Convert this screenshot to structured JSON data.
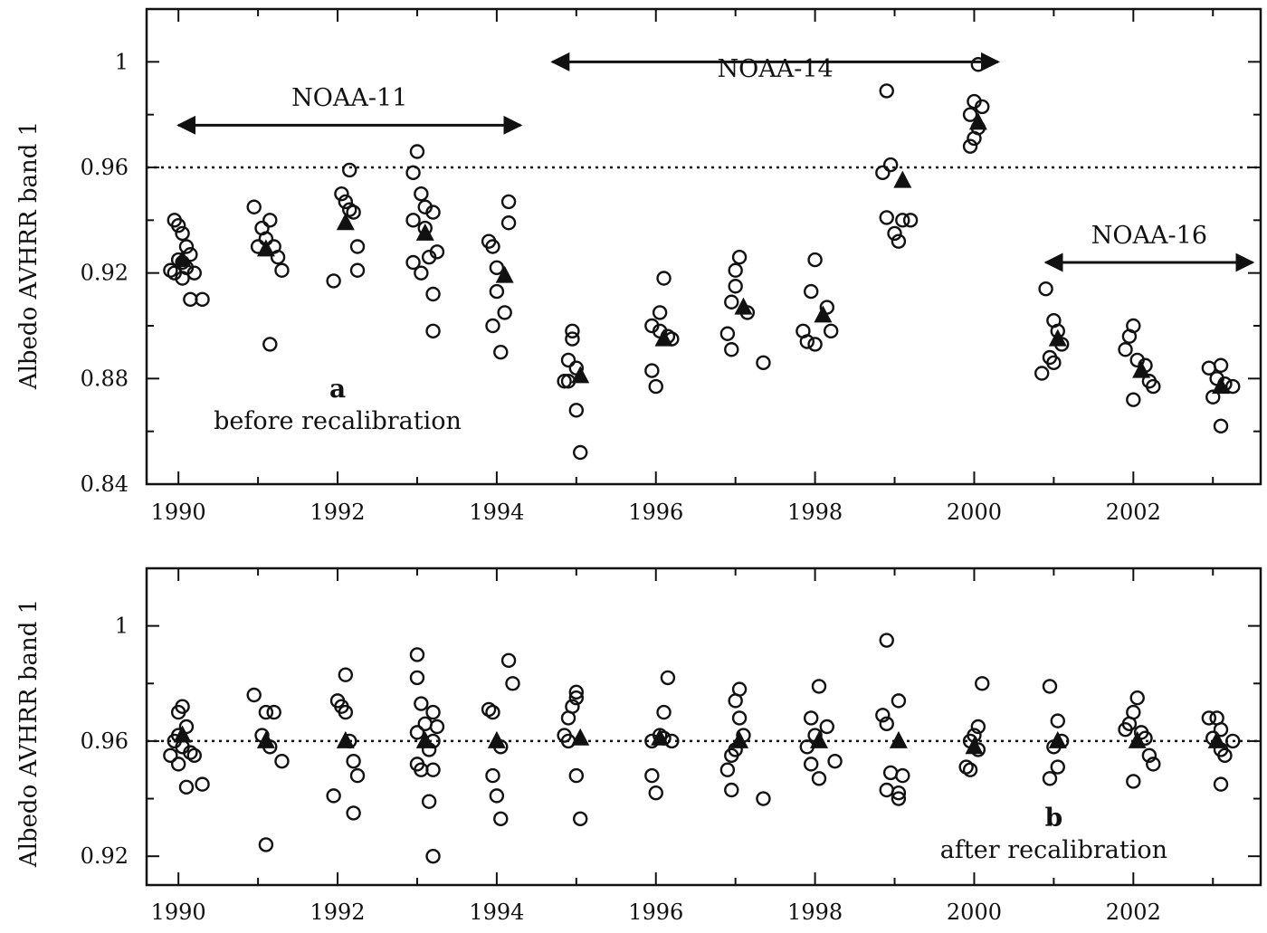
{
  "chart_data": [
    {
      "type": "scatter",
      "panel": "a",
      "ylabel": "Albedo AVHRR band 1",
      "xlabel": "",
      "xlim": [
        1989.6,
        2003.6
      ],
      "ylim": [
        0.84,
        1.02
      ],
      "x_ticks": [
        1990,
        1992,
        1994,
        1996,
        1998,
        2000,
        2002
      ],
      "x_tick_labels": [
        "1990",
        "1992",
        "1994",
        "1996",
        "1998",
        "2000",
        "2002"
      ],
      "y_ticks": [
        0.84,
        0.88,
        0.92,
        0.96,
        1.0
      ],
      "y_tick_labels": [
        "0.84",
        "0.88",
        "0.92",
        "0.96",
        "1"
      ],
      "reference_line": 0.96,
      "annotations": [
        {
          "text": "a",
          "x": 1992.0,
          "y": 0.873,
          "style": "letter"
        },
        {
          "text": "before recalibration",
          "x": 1992.0,
          "y": 0.861,
          "style": "text"
        }
      ],
      "satellites": [
        {
          "label": "NOAA-11",
          "from": 1990.0,
          "to": 1994.3,
          "y": 0.976,
          "label_y": 0.986
        },
        {
          "label": "NOAA-14",
          "from": 1994.7,
          "to": 2000.3,
          "y": 1.0,
          "label_y": 0.997
        },
        {
          "label": "NOAA-16",
          "from": 2000.9,
          "to": 2003.5,
          "y": 0.924,
          "label_y": 0.934
        }
      ],
      "groups": [
        {
          "mean_x": 1990.05,
          "mean": 0.925,
          "xs": [
            1989.95,
            1990.0,
            1990.05,
            1990.1,
            1990.15,
            1990.0,
            1990.05,
            1990.1,
            1989.9,
            1989.95,
            1990.2,
            1990.05,
            1990.15,
            1990.3
          ],
          "vals": [
            0.94,
            0.938,
            0.935,
            0.93,
            0.927,
            0.925,
            0.924,
            0.922,
            0.921,
            0.92,
            0.92,
            0.918,
            0.91,
            0.91
          ]
        },
        {
          "mean_x": 1991.1,
          "mean": 0.929,
          "xs": [
            1990.95,
            1991.15,
            1991.05,
            1991.1,
            1991.2,
            1991.0,
            1991.25,
            1991.3,
            1991.15
          ],
          "vals": [
            0.945,
            0.94,
            0.937,
            0.933,
            0.93,
            0.93,
            0.926,
            0.921,
            0.893
          ]
        },
        {
          "mean_x": 1992.1,
          "mean": 0.939,
          "xs": [
            1992.15,
            1992.05,
            1992.1,
            1992.15,
            1992.2,
            1992.25,
            1992.25,
            1991.95
          ],
          "vals": [
            0.959,
            0.95,
            0.947,
            0.944,
            0.943,
            0.93,
            0.921,
            0.917
          ]
        },
        {
          "mean_x": 1993.1,
          "mean": 0.935,
          "xs": [
            1993.0,
            1992.95,
            1993.05,
            1993.1,
            1993.2,
            1992.95,
            1993.1,
            1993.25,
            1993.15,
            1992.95,
            1993.05,
            1993.2,
            1993.2
          ],
          "vals": [
            0.966,
            0.958,
            0.95,
            0.945,
            0.943,
            0.94,
            0.937,
            0.928,
            0.926,
            0.924,
            0.92,
            0.912,
            0.898
          ]
        },
        {
          "mean_x": 1994.1,
          "mean": 0.919,
          "xs": [
            1994.15,
            1994.15,
            1993.9,
            1993.95,
            1994.0,
            1994.0,
            1994.1,
            1993.95,
            1994.05
          ],
          "vals": [
            0.947,
            0.939,
            0.932,
            0.93,
            0.922,
            0.913,
            0.905,
            0.9,
            0.89
          ]
        },
        {
          "mean_x": 1995.05,
          "mean": 0.881,
          "xs": [
            1994.95,
            1994.95,
            1994.9,
            1995.0,
            1994.85,
            1994.9,
            1995.0,
            1995.05
          ],
          "vals": [
            0.898,
            0.895,
            0.887,
            0.884,
            0.879,
            0.879,
            0.868,
            0.852
          ]
        },
        {
          "mean_x": 1996.1,
          "mean": 0.895,
          "xs": [
            1996.1,
            1996.05,
            1995.95,
            1996.05,
            1996.15,
            1996.2,
            1995.95,
            1996.0
          ],
          "vals": [
            0.918,
            0.905,
            0.9,
            0.898,
            0.896,
            0.895,
            0.883,
            0.877
          ]
        },
        {
          "mean_x": 1997.1,
          "mean": 0.907,
          "xs": [
            1997.05,
            1997.0,
            1997.0,
            1996.95,
            1997.15,
            1996.9,
            1996.95,
            1997.35
          ],
          "vals": [
            0.926,
            0.921,
            0.915,
            0.909,
            0.905,
            0.897,
            0.891,
            0.886
          ]
        },
        {
          "mean_x": 1998.1,
          "mean": 0.904,
          "xs": [
            1998.0,
            1997.95,
            1998.15,
            1997.85,
            1998.2,
            1997.9,
            1998.0
          ],
          "vals": [
            0.925,
            0.913,
            0.907,
            0.898,
            0.898,
            0.894,
            0.893
          ]
        },
        {
          "mean_x": 1999.1,
          "mean": 0.955,
          "xs": [
            1998.9,
            1998.95,
            1998.85,
            1999.1,
            1998.9,
            1999.2,
            1999.0,
            1999.05
          ],
          "vals": [
            0.989,
            0.961,
            0.958,
            0.94,
            0.941,
            0.94,
            0.935,
            0.932
          ]
        },
        {
          "mean_x": 2000.05,
          "mean": 0.977,
          "xs": [
            2000.05,
            2000.0,
            2000.1,
            1999.95,
            2000.05,
            2000.0,
            1999.95
          ],
          "vals": [
            0.999,
            0.985,
            0.983,
            0.98,
            0.975,
            0.971,
            0.968
          ]
        },
        {
          "mean_x": 2001.05,
          "mean": 0.895,
          "xs": [
            2000.9,
            2001.0,
            2001.05,
            2001.1,
            2000.95,
            2000.85,
            2001.0
          ],
          "vals": [
            0.914,
            0.902,
            0.898,
            0.893,
            0.888,
            0.882,
            0.886
          ]
        },
        {
          "mean_x": 2002.1,
          "mean": 0.883,
          "xs": [
            2002.0,
            2001.95,
            2001.9,
            2002.05,
            2002.15,
            2002.2,
            2002.25,
            2002.0
          ],
          "vals": [
            0.9,
            0.896,
            0.891,
            0.887,
            0.885,
            0.879,
            0.877,
            0.872
          ]
        },
        {
          "mean_x": 2003.1,
          "mean": 0.877,
          "xs": [
            2002.95,
            2003.1,
            2003.05,
            2003.15,
            2003.25,
            2003.0,
            2003.1
          ],
          "vals": [
            0.884,
            0.885,
            0.88,
            0.878,
            0.877,
            0.873,
            0.862
          ]
        }
      ]
    },
    {
      "type": "scatter",
      "panel": "b",
      "ylabel": "Albedo AVHRR band 1",
      "xlabel": "",
      "xlim": [
        1989.6,
        2003.6
      ],
      "ylim": [
        0.91,
        1.02
      ],
      "x_ticks": [
        1990,
        1992,
        1994,
        1996,
        1998,
        2000,
        2002
      ],
      "x_tick_labels": [
        "1990",
        "1992",
        "1994",
        "1996",
        "1998",
        "2000",
        "2002"
      ],
      "y_ticks": [
        0.92,
        0.96,
        1.0
      ],
      "y_tick_labels": [
        "0.92",
        "0.96",
        "1"
      ],
      "reference_line": 0.96,
      "annotations": [
        {
          "text": "b",
          "x": 2001.0,
          "y": 0.9305,
          "style": "letter"
        },
        {
          "text": "after recalibration",
          "x": 2001.0,
          "y": 0.9195,
          "style": "text"
        }
      ],
      "groups": [
        {
          "mean_x": 1990.05,
          "mean": 0.962,
          "xs": [
            1990.05,
            1990.0,
            1990.1,
            1990.0,
            1989.95,
            1990.05,
            1990.15,
            1989.9,
            1990.2,
            1990.0,
            1990.1,
            1990.3
          ],
          "vals": [
            0.972,
            0.97,
            0.965,
            0.962,
            0.96,
            0.958,
            0.956,
            0.955,
            0.955,
            0.952,
            0.944,
            0.945
          ]
        },
        {
          "mean_x": 1991.1,
          "mean": 0.96,
          "xs": [
            1990.95,
            1991.1,
            1991.2,
            1991.05,
            1991.15,
            1991.3,
            1991.1
          ],
          "vals": [
            0.976,
            0.97,
            0.97,
            0.962,
            0.958,
            0.953,
            0.924
          ]
        },
        {
          "mean_x": 1992.1,
          "mean": 0.96,
          "xs": [
            1992.1,
            1992.0,
            1992.05,
            1992.1,
            1992.15,
            1992.2,
            1992.25,
            1991.95,
            1992.2
          ],
          "vals": [
            0.983,
            0.974,
            0.972,
            0.97,
            0.96,
            0.953,
            0.948,
            0.941,
            0.935
          ]
        },
        {
          "mean_x": 1993.1,
          "mean": 0.96,
          "xs": [
            1993.0,
            1993.0,
            1993.05,
            1993.2,
            1993.1,
            1993.0,
            1993.2,
            1993.25,
            1993.15,
            1993.0,
            1993.05,
            1993.2,
            1993.15,
            1993.2
          ],
          "vals": [
            0.99,
            0.982,
            0.973,
            0.97,
            0.966,
            0.963,
            0.96,
            0.965,
            0.957,
            0.952,
            0.95,
            0.95,
            0.939,
            0.92
          ]
        },
        {
          "mean_x": 1994.0,
          "mean": 0.96,
          "xs": [
            1994.15,
            1994.2,
            1993.9,
            1993.95,
            1994.05,
            1993.95,
            1994.0,
            1994.05
          ],
          "vals": [
            0.988,
            0.98,
            0.971,
            0.97,
            0.958,
            0.948,
            0.941,
            0.933
          ]
        },
        {
          "mean_x": 1995.05,
          "mean": 0.961,
          "xs": [
            1995.0,
            1995.0,
            1994.95,
            1994.9,
            1994.85,
            1994.9,
            1995.0,
            1995.05
          ],
          "vals": [
            0.977,
            0.975,
            0.972,
            0.968,
            0.962,
            0.96,
            0.948,
            0.933
          ]
        },
        {
          "mean_x": 1996.05,
          "mean": 0.961,
          "xs": [
            1996.15,
            1996.1,
            1996.05,
            1996.1,
            1995.95,
            1996.2,
            1995.95,
            1996.0
          ],
          "vals": [
            0.982,
            0.97,
            0.962,
            0.961,
            0.96,
            0.96,
            0.948,
            0.942
          ]
        },
        {
          "mean_x": 1997.05,
          "mean": 0.96,
          "xs": [
            1997.05,
            1997.0,
            1997.05,
            1997.1,
            1997.0,
            1996.95,
            1996.9,
            1996.95,
            1997.35
          ],
          "vals": [
            0.978,
            0.974,
            0.968,
            0.962,
            0.957,
            0.955,
            0.95,
            0.943,
            0.94
          ]
        },
        {
          "mean_x": 1998.05,
          "mean": 0.96,
          "xs": [
            1998.05,
            1997.95,
            1998.15,
            1998.0,
            1997.9,
            1998.25,
            1997.95,
            1998.05
          ],
          "vals": [
            0.979,
            0.968,
            0.965,
            0.962,
            0.958,
            0.953,
            0.952,
            0.947
          ]
        },
        {
          "mean_x": 1999.05,
          "mean": 0.96,
          "xs": [
            1998.9,
            1999.05,
            1998.85,
            1998.9,
            1998.95,
            1999.1,
            1998.9,
            1999.05,
            1999.05
          ],
          "vals": [
            0.995,
            0.974,
            0.969,
            0.966,
            0.949,
            0.948,
            0.943,
            0.942,
            0.94
          ]
        },
        {
          "mean_x": 2000.0,
          "mean": 0.958,
          "xs": [
            2000.1,
            2000.05,
            2000.0,
            1999.95,
            2000.05,
            1999.9,
            1999.95
          ],
          "vals": [
            0.98,
            0.965,
            0.962,
            0.96,
            0.957,
            0.951,
            0.95
          ]
        },
        {
          "mean_x": 2001.05,
          "mean": 0.96,
          "xs": [
            2000.95,
            2001.05,
            2001.1,
            2001.0,
            2001.05,
            2000.95
          ],
          "vals": [
            0.979,
            0.967,
            0.96,
            0.958,
            0.951,
            0.947
          ]
        },
        {
          "mean_x": 2002.05,
          "mean": 0.96,
          "xs": [
            2002.05,
            2002.0,
            2001.95,
            2002.1,
            2001.9,
            2002.15,
            2002.2,
            2002.25,
            2002.0
          ],
          "vals": [
            0.975,
            0.97,
            0.966,
            0.963,
            0.964,
            0.961,
            0.955,
            0.952,
            0.946
          ]
        },
        {
          "mean_x": 2003.05,
          "mean": 0.96,
          "xs": [
            2002.95,
            2003.05,
            2003.1,
            2003.0,
            2003.25,
            2003.1,
            2003.15,
            2003.1
          ],
          "vals": [
            0.968,
            0.968,
            0.964,
            0.961,
            0.96,
            0.957,
            0.955,
            0.945
          ]
        }
      ]
    }
  ]
}
